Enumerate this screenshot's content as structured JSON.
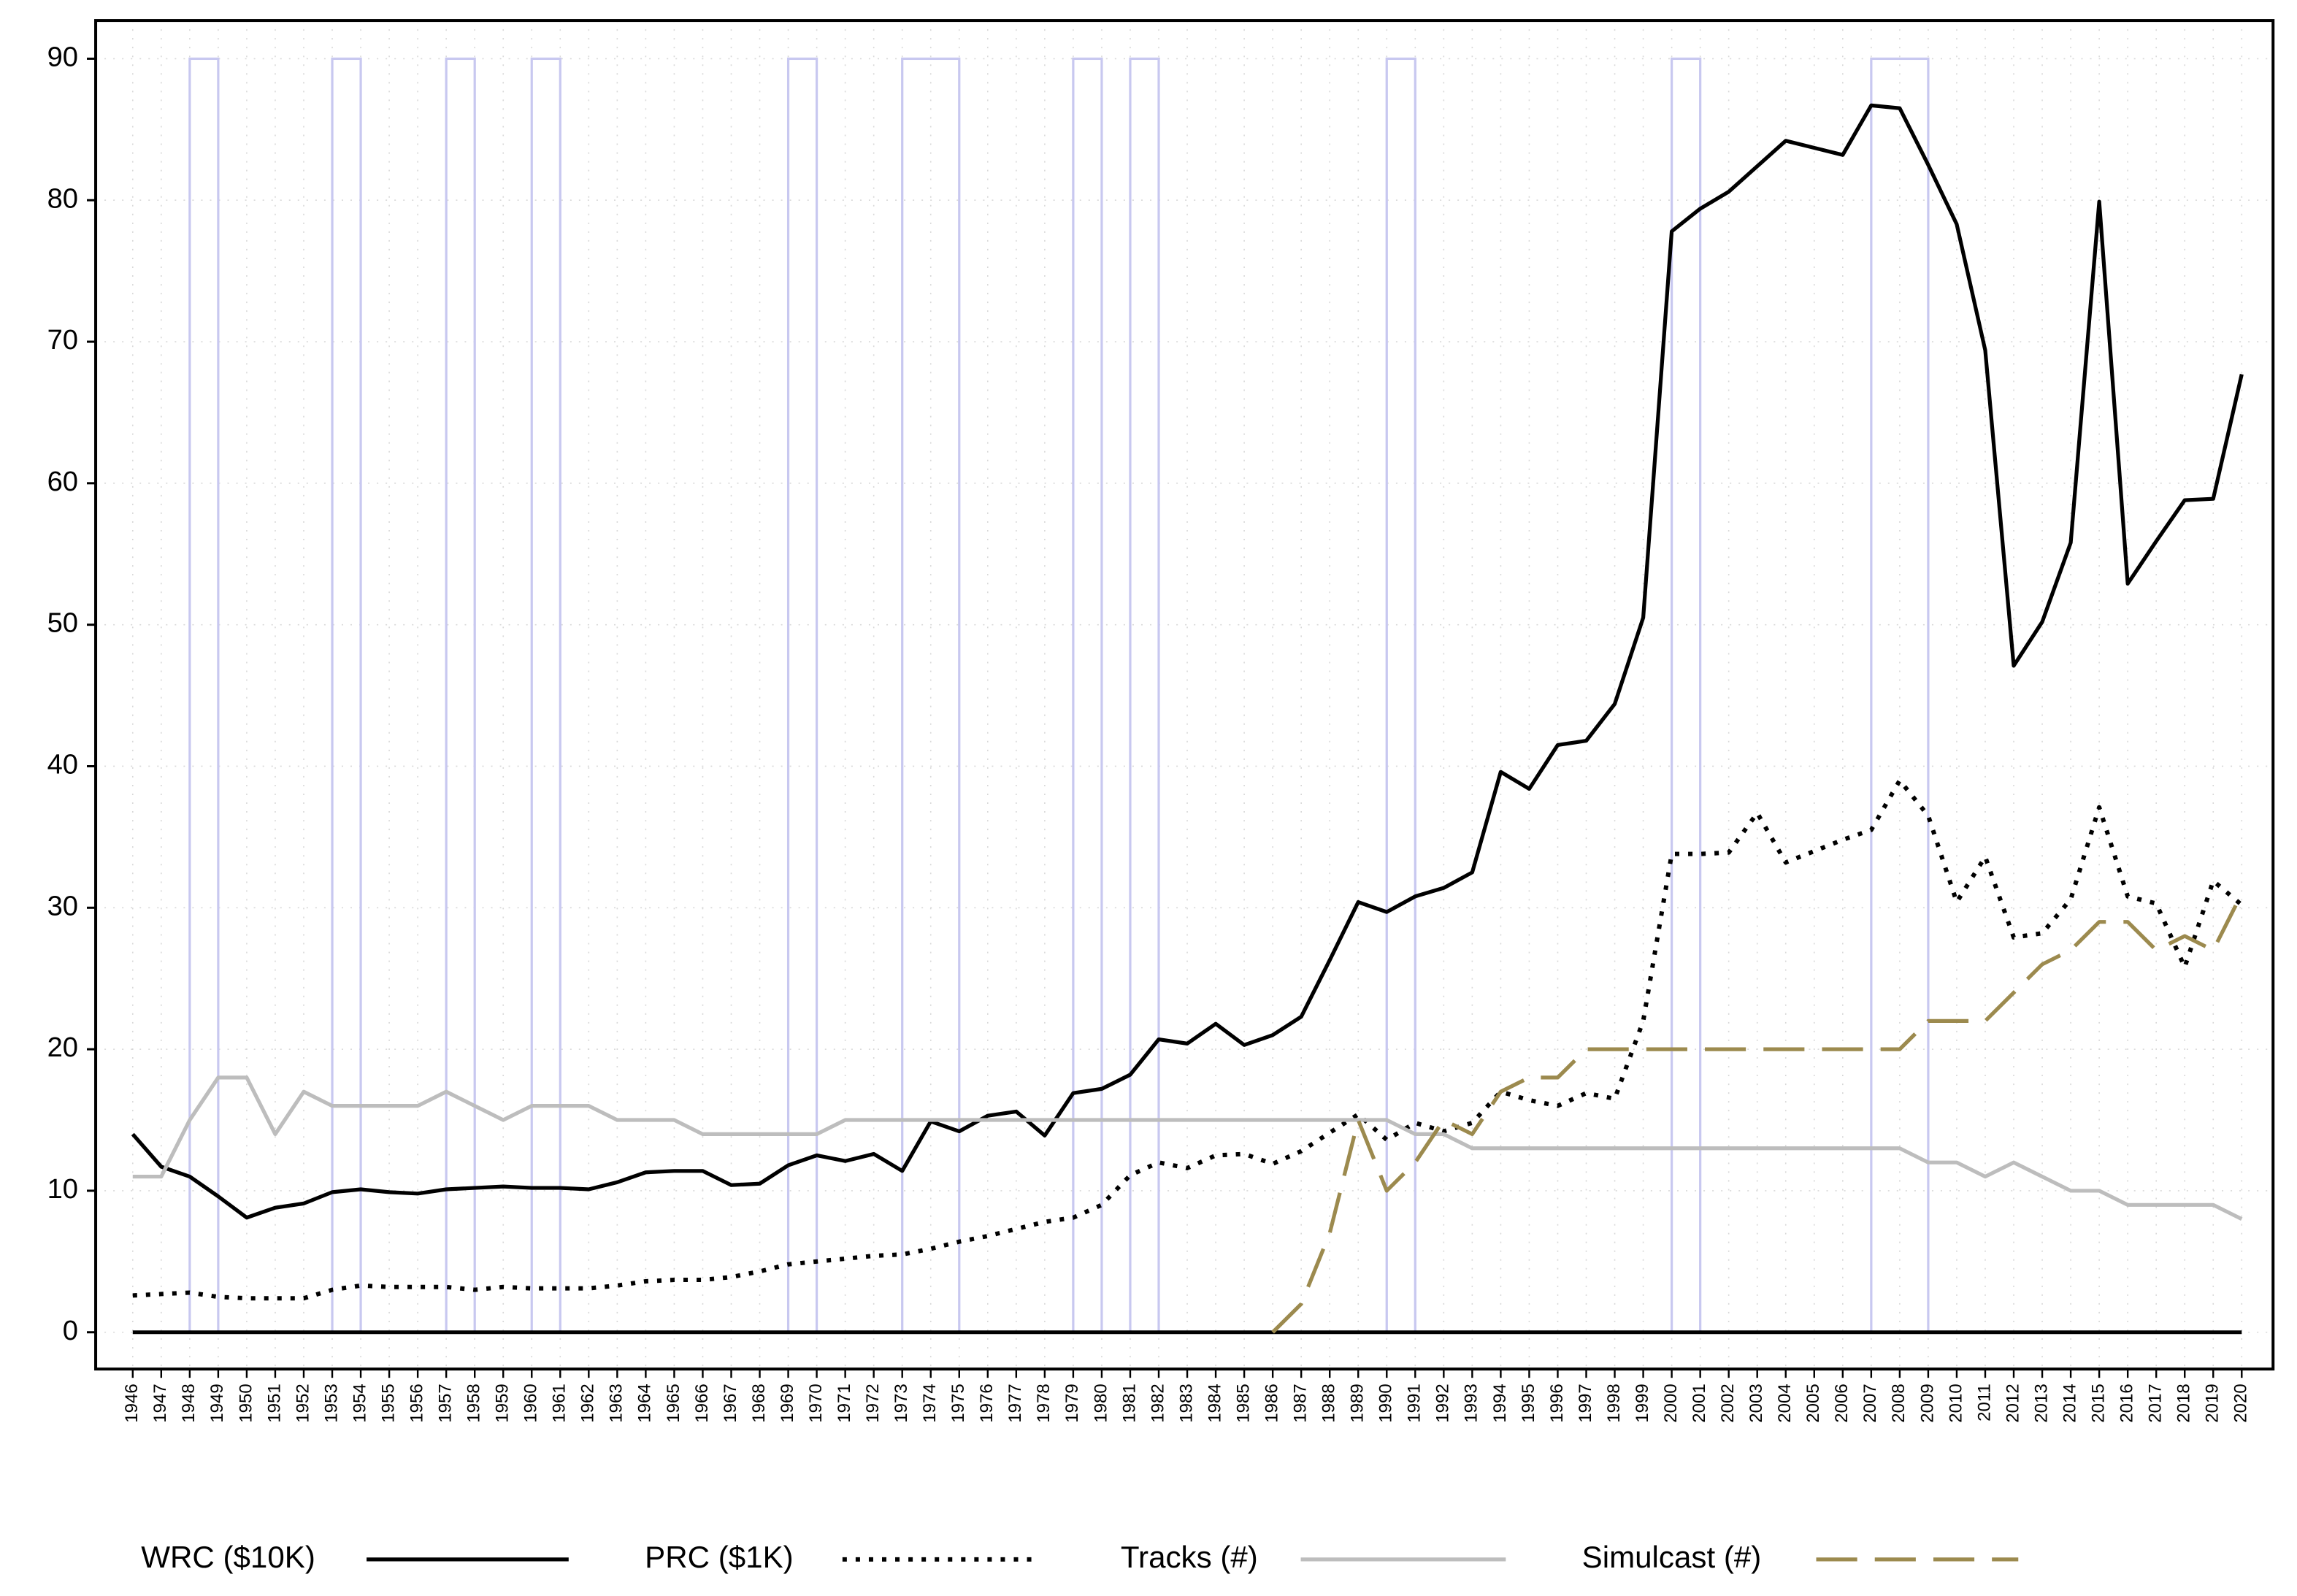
{
  "chart_data": {
    "type": "line",
    "x": [
      1946,
      1947,
      1948,
      1949,
      1950,
      1951,
      1952,
      1953,
      1954,
      1955,
      1956,
      1957,
      1958,
      1959,
      1960,
      1961,
      1962,
      1963,
      1964,
      1965,
      1966,
      1967,
      1968,
      1969,
      1970,
      1971,
      1972,
      1973,
      1974,
      1975,
      1976,
      1977,
      1978,
      1979,
      1980,
      1981,
      1982,
      1983,
      1984,
      1985,
      1986,
      1987,
      1988,
      1989,
      1990,
      1991,
      1992,
      1993,
      1994,
      1995,
      1996,
      1997,
      1998,
      1999,
      2000,
      2001,
      2002,
      2003,
      2004,
      2005,
      2006,
      2007,
      2008,
      2009,
      2010,
      2011,
      2012,
      2013,
      2014,
      2015,
      2016,
      2017,
      2018,
      2019,
      2020
    ],
    "xlim": [
      1944.7,
      2021.1
    ],
    "xticks": [
      1946,
      1947,
      1948,
      1949,
      1950,
      1951,
      1952,
      1953,
      1954,
      1955,
      1956,
      1957,
      1958,
      1959,
      1960,
      1961,
      1962,
      1963,
      1964,
      1965,
      1966,
      1967,
      1968,
      1969,
      1970,
      1971,
      1972,
      1973,
      1974,
      1975,
      1976,
      1977,
      1978,
      1979,
      1980,
      1981,
      1982,
      1983,
      1984,
      1985,
      1986,
      1987,
      1988,
      1989,
      1990,
      1991,
      1992,
      1993,
      1994,
      1995,
      1996,
      1997,
      1998,
      1999,
      2000,
      2001,
      2002,
      2003,
      2004,
      2005,
      2006,
      2007,
      2008,
      2009,
      2010,
      2011,
      2012,
      2013,
      2014,
      2015,
      2016,
      2017,
      2018,
      2019,
      2020
    ],
    "ylim": [
      -2.6,
      92.7
    ],
    "yticks": [
      0,
      10,
      20,
      30,
      40,
      50,
      60,
      70,
      80,
      90
    ],
    "grid": true,
    "reference_line": 0,
    "shade_top": 90,
    "shade_color": "#c8c8f0",
    "shaded_periods": [
      {
        "start": 1948,
        "end": 1949
      },
      {
        "start": 1953,
        "end": 1954
      },
      {
        "start": 1957,
        "end": 1958
      },
      {
        "start": 1960,
        "end": 1961
      },
      {
        "start": 1969,
        "end": 1970
      },
      {
        "start": 1973,
        "end": 1975
      },
      {
        "start": 1979,
        "end": 1980
      },
      {
        "start": 1981,
        "end": 1982
      },
      {
        "start": 1990,
        "end": 1991
      },
      {
        "start": 2000,
        "end": 2001
      },
      {
        "start": 2007,
        "end": 2009
      }
    ],
    "legend": "bottom",
    "series": [
      {
        "name": "WRC ($10K)",
        "color": "#000000",
        "line_style": "solid",
        "values": [
          14.0,
          11.7,
          11.0,
          9.6,
          8.1,
          8.8,
          9.1,
          9.9,
          10.1,
          9.9,
          9.8,
          10.1,
          10.2,
          10.3,
          10.2,
          10.2,
          10.1,
          10.6,
          11.3,
          11.4,
          11.4,
          10.4,
          10.5,
          11.8,
          12.5,
          12.1,
          12.6,
          11.4,
          14.9,
          14.2,
          15.3,
          15.6,
          13.9,
          16.9,
          17.2,
          18.2,
          20.7,
          20.4,
          21.8,
          20.3,
          21.0,
          22.3,
          26.3,
          30.4,
          29.7,
          30.8,
          31.4,
          32.5,
          39.6,
          38.4,
          41.5,
          41.8,
          44.4,
          50.5,
          77.8,
          79.4,
          80.6,
          82.4,
          84.2,
          83.7,
          83.2,
          86.7,
          86.5,
          82.5,
          78.3,
          69.4,
          47.1,
          50.2,
          55.8,
          79.9,
          52.9,
          55.9,
          58.8,
          58.9,
          67.7
        ]
      },
      {
        "name": "PRC ($1K)",
        "color": "#000000",
        "line_style": "dotted",
        "values": [
          2.6,
          2.7,
          2.8,
          2.5,
          2.4,
          2.4,
          2.4,
          3.0,
          3.3,
          3.2,
          3.2,
          3.2,
          3.0,
          3.2,
          3.1,
          3.1,
          3.1,
          3.3,
          3.6,
          3.7,
          3.7,
          3.9,
          4.3,
          4.8,
          5.0,
          5.2,
          5.4,
          5.5,
          5.9,
          6.4,
          6.8,
          7.3,
          7.8,
          8.1,
          9.0,
          11.1,
          12.0,
          11.6,
          12.5,
          12.6,
          11.9,
          12.8,
          14.1,
          15.4,
          13.6,
          14.8,
          14.2,
          14.8,
          17.0,
          16.4,
          16.0,
          16.9,
          16.5,
          22.0,
          33.8,
          33.8,
          33.9,
          36.7,
          33.2,
          34.0,
          34.8,
          35.5,
          39.0,
          36.5,
          30.4,
          33.6,
          27.9,
          28.2,
          30.6,
          37.1,
          30.8,
          30.3,
          25.8,
          31.9,
          30.2
        ]
      },
      {
        "name": "Tracks (#)",
        "color": "#bdbdbd",
        "line_style": "solid",
        "values": [
          11,
          11,
          15,
          18,
          18,
          14,
          17,
          16,
          16,
          16,
          16,
          17,
          16,
          15,
          16,
          16,
          16,
          15,
          15,
          15,
          14,
          14,
          14,
          14,
          14,
          15,
          15,
          15,
          15,
          15,
          15,
          15,
          15,
          15,
          15,
          15,
          15,
          15,
          15,
          15,
          15,
          15,
          15,
          15,
          15,
          14,
          14,
          13,
          13,
          13,
          13,
          13,
          13,
          13,
          13,
          13,
          13,
          13,
          13,
          13,
          13,
          13,
          13,
          12,
          12,
          11,
          12,
          11,
          10,
          10,
          9,
          9,
          9,
          9,
          8
        ]
      },
      {
        "name": "Simulcast (#)",
        "color": "#9c8a4e",
        "line_style": "dashed",
        "values": [
          null,
          null,
          null,
          null,
          null,
          null,
          null,
          null,
          null,
          null,
          null,
          null,
          null,
          null,
          null,
          null,
          null,
          null,
          null,
          null,
          null,
          null,
          null,
          null,
          null,
          null,
          null,
          null,
          null,
          null,
          null,
          null,
          null,
          null,
          null,
          null,
          null,
          null,
          null,
          null,
          0,
          2,
          7,
          15,
          10,
          12,
          15,
          14,
          17,
          18,
          18,
          20,
          20,
          20,
          20,
          20,
          20,
          20,
          20,
          20,
          20,
          20,
          20,
          22,
          22,
          22,
          24,
          26,
          27,
          29,
          29,
          27,
          28,
          27,
          31
        ]
      }
    ]
  }
}
